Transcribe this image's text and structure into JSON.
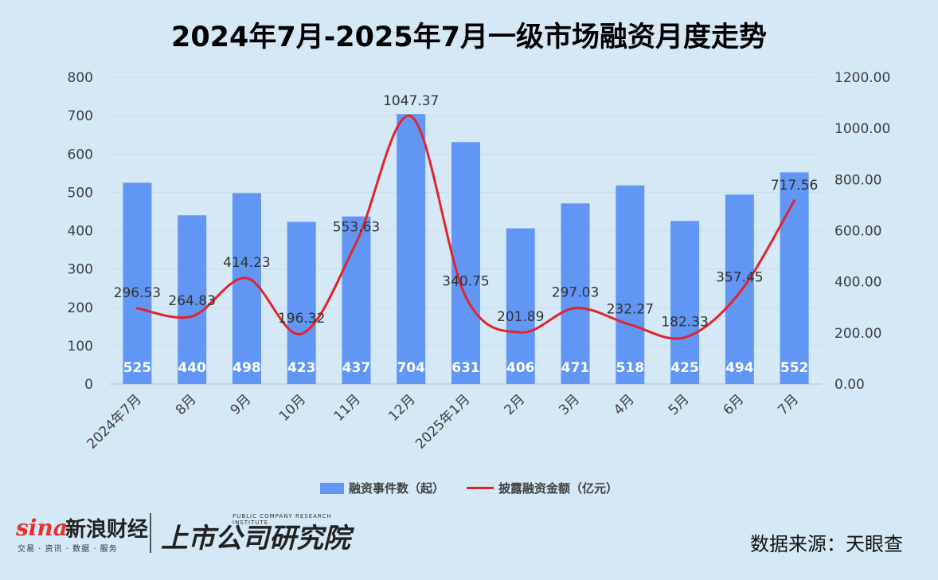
{
  "chart_data": {
    "type": "bar+line",
    "title": "2024年7月-2025年7月一级市场融资月度走势",
    "categories": [
      "2024年7月",
      "8月",
      "9月",
      "10月",
      "11月",
      "12月",
      "2025年1月",
      "2月",
      "3月",
      "4月",
      "5月",
      "6月",
      "7月"
    ],
    "series": [
      {
        "name": "融资事件数（起）",
        "type": "bar",
        "axis": "left",
        "color": "#6196f5",
        "values": [
          525,
          440,
          498,
          423,
          437,
          704,
          631,
          406,
          471,
          518,
          425,
          494,
          552
        ]
      },
      {
        "name": "披露融资金额（亿元）",
        "type": "line",
        "axis": "right",
        "color": "#e3242b",
        "values": [
          296.53,
          264.83,
          414.23,
          196.32,
          553.63,
          1047.37,
          340.75,
          201.89,
          297.03,
          232.27,
          182.33,
          357.45,
          717.56
        ]
      }
    ],
    "y_left": {
      "range": [
        0,
        800
      ],
      "ticks": [
        "0",
        "100",
        "200",
        "300",
        "400",
        "500",
        "600",
        "700",
        "800"
      ]
    },
    "y_right": {
      "range": [
        0,
        1200
      ],
      "ticks": [
        "0.00",
        "200.00",
        "400.00",
        "600.00",
        "800.00",
        "1000.00",
        "1200.00"
      ]
    },
    "grid": true,
    "legend": "bottom"
  },
  "footer": {
    "sina_logo": "sina",
    "sina_name": "新浪财经",
    "sina_tagline": "交易 · 资讯 · 数据 · 服务",
    "research_name": "上市公司研究院",
    "research_sub": "PUBLIC COMPANY RESEARCH INSTITUTE",
    "source": "数据来源：天眼查"
  }
}
